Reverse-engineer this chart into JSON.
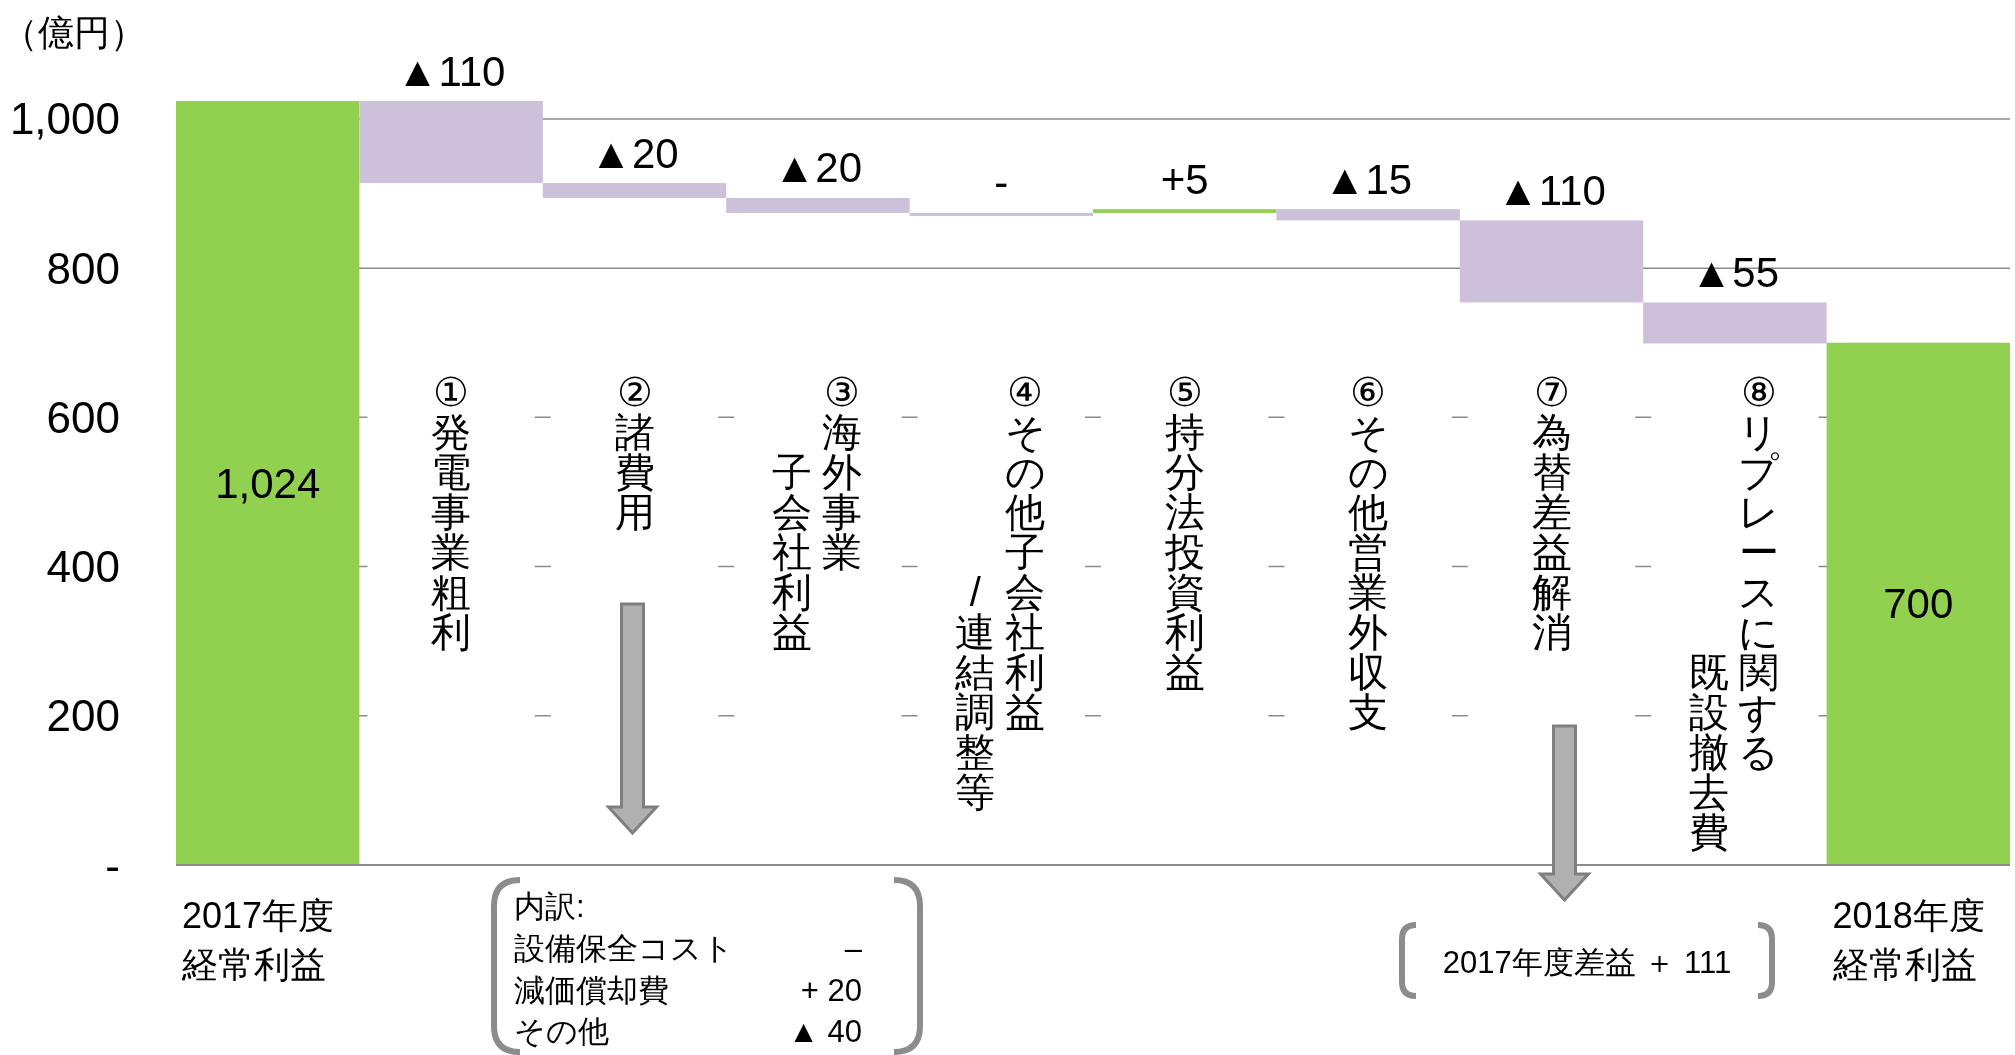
{
  "chart_data": {
    "type": "bar",
    "ylabel": "（億円）",
    "categories": [
      "2017年度経常利益",
      "①発電事業粗利",
      "②諸費用",
      "③海外事業子会社利益",
      "④その他子会社利益/連結調整等",
      "⑤持分法投資利益",
      "⑥その他営業外収支",
      "⑦為替差益解消",
      "⑧リプレースに関する既設撤去費",
      "2018年度経常利益"
    ],
    "values": [
      1024,
      -110,
      -20,
      -20,
      0,
      5,
      -15,
      -110,
      -55,
      700
    ],
    "base": [
      0,
      1024,
      914,
      894,
      874,
      874,
      879,
      864,
      754,
      0
    ],
    "colors": [
      "#92d050",
      "#ccc0da",
      "#ccc0da",
      "#ccc0da",
      "#ccc0da",
      "#92d050",
      "#ccc0da",
      "#ccc0da",
      "#ccc0da",
      "#92d050"
    ],
    "value_labels": [
      "1,024",
      "▲110",
      "▲20",
      "▲20",
      "-",
      "+5",
      "▲15",
      "▲110",
      "▲55",
      "700"
    ],
    "ylim": [
      0,
      1024
    ],
    "yticks": [
      {
        "value": 0,
        "label": "-"
      },
      200,
      400,
      600,
      800,
      {
        "value": 1000,
        "label": "1,000"
      }
    ],
    "grid": "y",
    "annotations": [
      "内訳:",
      "設備保全コスト",
      "–",
      "減価償却費",
      "+ 20",
      "その他",
      "▲ 40",
      "2017年度差益 ＋ 111"
    ]
  }
}
